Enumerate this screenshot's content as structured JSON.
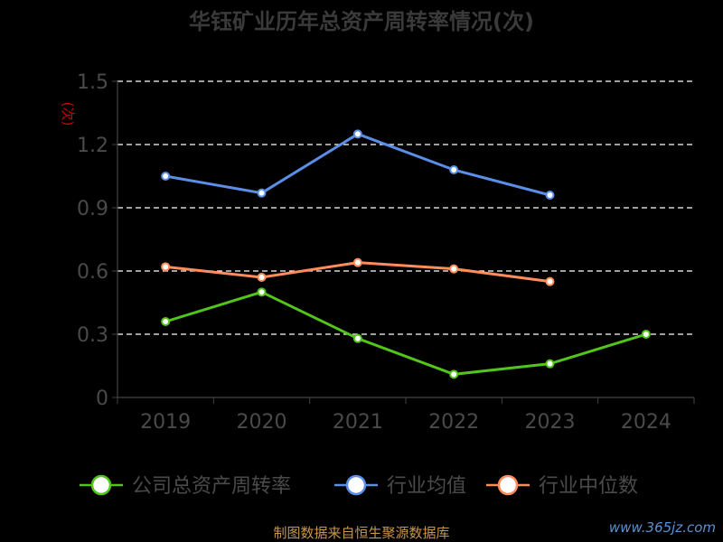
{
  "chart_data": {
    "type": "line",
    "title": "华钰矿业历年总资产周转率情况(次)",
    "ylabel": "(次)",
    "categories": [
      "2019",
      "2020",
      "2021",
      "2022",
      "2023",
      "2024"
    ],
    "yticks": [
      "0",
      "0.3",
      "0.6",
      "0.9",
      "1.2",
      "1.5"
    ],
    "ylim": [
      0,
      1.5
    ],
    "grid": true,
    "legend_position": "bottom",
    "series": [
      {
        "name": "公司总资产周转率",
        "color": "#52c41a",
        "values": [
          0.36,
          0.5,
          0.28,
          0.11,
          0.16,
          0.3
        ]
      },
      {
        "name": "行业均值",
        "color": "#5b8ee6",
        "values": [
          1.05,
          0.97,
          1.25,
          1.08,
          0.96,
          null
        ]
      },
      {
        "name": "行业中位数",
        "color": "#ff8c5a",
        "values": [
          0.62,
          0.57,
          0.64,
          0.61,
          0.55,
          null
        ]
      }
    ]
  },
  "footer": {
    "source": "制图数据来自恒生聚源数据库",
    "watermark": "www.365jz.com"
  }
}
